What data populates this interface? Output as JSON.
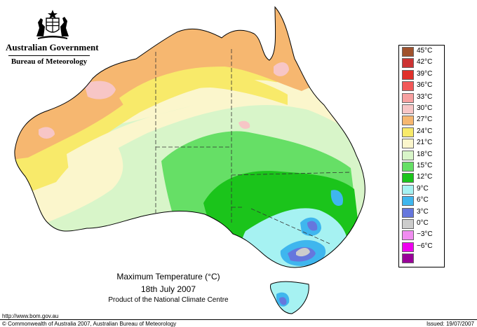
{
  "header": {
    "government": "Australian Government",
    "bureau": "Bureau of Meteorology",
    "crest_icon": "coat-of-arms-icon"
  },
  "map": {
    "title": "Maximum Temperature (°C)",
    "date": "18th July 2007",
    "product": "Product of the National Climate Centre",
    "units": "°C",
    "legend": [
      {
        "label": "45°C",
        "color": "#a0522d"
      },
      {
        "label": "42°C",
        "color": "#cc3333"
      },
      {
        "label": "39°C",
        "color": "#e0302a"
      },
      {
        "label": "36°C",
        "color": "#f25858"
      },
      {
        "label": "33°C",
        "color": "#f7a0a0"
      },
      {
        "label": "30°C",
        "color": "#f7c6c6"
      },
      {
        "label": "27°C",
        "color": "#f6b770"
      },
      {
        "label": "24°C",
        "color": "#f8ea6a"
      },
      {
        "label": "21°C",
        "color": "#fbf6cc"
      },
      {
        "label": "18°C",
        "color": "#d8f5c9"
      },
      {
        "label": "15°C",
        "color": "#66df66"
      },
      {
        "label": "12°C",
        "color": "#1bc41b"
      },
      {
        "label": "9°C",
        "color": "#a6f2f2"
      },
      {
        "label": "6°C",
        "color": "#3fb6ee"
      },
      {
        "label": "3°C",
        "color": "#6677dd"
      },
      {
        "label": "0°C",
        "color": "#cccccc"
      },
      {
        "label": "−3°C",
        "color": "#f08cf0"
      },
      {
        "label": "−6°C",
        "color": "#ee00ee"
      },
      {
        "label": "",
        "color": "#990099"
      }
    ]
  },
  "footer": {
    "url": "http://www.bom.gov.au",
    "copyright": "© Commonwealth of Australia 2007, Australian Bureau of Meteorology",
    "issued": "Issued: 19/07/2007"
  }
}
